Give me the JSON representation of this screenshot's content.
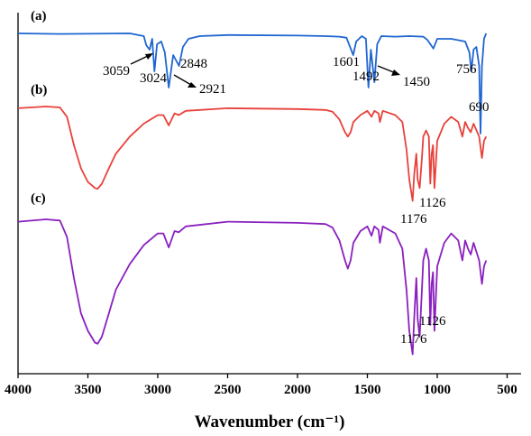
{
  "chart_data": {
    "type": "line",
    "xlabel": "Wavenumber (cm⁻¹)",
    "xlim": [
      4000,
      400
    ],
    "x_reversed": true,
    "x_ticks": [
      4000,
      3500,
      3000,
      2500,
      2000,
      1500,
      1000,
      500
    ],
    "y_axis_visible": false,
    "grid": false,
    "legend": "none",
    "series": [
      {
        "panel": "(a)",
        "color": "#1f66d1",
        "points": [
          [
            4000,
            0.0
          ],
          [
            3700,
            0.01
          ],
          [
            3200,
            0.0
          ],
          [
            3100,
            0.05
          ],
          [
            3082,
            0.22
          ],
          [
            3059,
            0.3
          ],
          [
            3040,
            0.1
          ],
          [
            3024,
            0.7
          ],
          [
            3005,
            0.2
          ],
          [
            2975,
            0.15
          ],
          [
            2950,
            0.35
          ],
          [
            2921,
            1.0
          ],
          [
            2890,
            0.4
          ],
          [
            2848,
            0.6
          ],
          [
            2820,
            0.25
          ],
          [
            2780,
            0.1
          ],
          [
            2700,
            0.05
          ],
          [
            2500,
            0.03
          ],
          [
            2000,
            0.04
          ],
          [
            1800,
            0.05
          ],
          [
            1700,
            0.06
          ],
          [
            1650,
            0.08
          ],
          [
            1601,
            0.4
          ],
          [
            1580,
            0.15
          ],
          [
            1540,
            0.05
          ],
          [
            1510,
            0.1
          ],
          [
            1492,
            1.0
          ],
          [
            1475,
            0.3
          ],
          [
            1450,
            0.9
          ],
          [
            1430,
            0.2
          ],
          [
            1400,
            0.05
          ],
          [
            1300,
            0.06
          ],
          [
            1200,
            0.05
          ],
          [
            1100,
            0.06
          ],
          [
            1070,
            0.12
          ],
          [
            1028,
            0.28
          ],
          [
            1000,
            0.1
          ],
          [
            900,
            0.1
          ],
          [
            800,
            0.15
          ],
          [
            770,
            0.35
          ],
          [
            756,
            0.7
          ],
          [
            740,
            0.3
          ],
          [
            720,
            0.25
          ],
          [
            700,
            0.6
          ],
          [
            690,
            1.85
          ],
          [
            680,
            0.6
          ],
          [
            665,
            0.1
          ],
          [
            650,
            0.0
          ]
        ]
      },
      {
        "panel": "(b)",
        "color": "#e8413b",
        "points": [
          [
            4000,
            0.02
          ],
          [
            3800,
            0.0
          ],
          [
            3700,
            0.01
          ],
          [
            3650,
            0.12
          ],
          [
            3600,
            0.45
          ],
          [
            3550,
            0.72
          ],
          [
            3500,
            0.88
          ],
          [
            3450,
            0.95
          ],
          [
            3430,
            0.96
          ],
          [
            3400,
            0.9
          ],
          [
            3350,
            0.72
          ],
          [
            3300,
            0.55
          ],
          [
            3200,
            0.35
          ],
          [
            3100,
            0.2
          ],
          [
            3000,
            0.1
          ],
          [
            2960,
            0.1
          ],
          [
            2921,
            0.22
          ],
          [
            2880,
            0.08
          ],
          [
            2850,
            0.1
          ],
          [
            2800,
            0.05
          ],
          [
            2500,
            0.02
          ],
          [
            2000,
            0.03
          ],
          [
            1800,
            0.04
          ],
          [
            1750,
            0.06
          ],
          [
            1700,
            0.15
          ],
          [
            1660,
            0.3
          ],
          [
            1640,
            0.35
          ],
          [
            1620,
            0.3
          ],
          [
            1600,
            0.18
          ],
          [
            1550,
            0.1
          ],
          [
            1500,
            0.05
          ],
          [
            1470,
            0.12
          ],
          [
            1450,
            0.05
          ],
          [
            1420,
            0.08
          ],
          [
            1410,
            0.18
          ],
          [
            1390,
            0.05
          ],
          [
            1300,
            0.1
          ],
          [
            1250,
            0.18
          ],
          [
            1220,
            0.5
          ],
          [
            1200,
            0.85
          ],
          [
            1176,
            1.1
          ],
          [
            1165,
            0.8
          ],
          [
            1150,
            0.55
          ],
          [
            1140,
            0.85
          ],
          [
            1126,
            0.95
          ],
          [
            1110,
            0.6
          ],
          [
            1100,
            0.35
          ],
          [
            1080,
            0.28
          ],
          [
            1060,
            0.35
          ],
          [
            1050,
            0.9
          ],
          [
            1040,
            0.55
          ],
          [
            1030,
            0.45
          ],
          [
            1020,
            0.95
          ],
          [
            1000,
            0.4
          ],
          [
            950,
            0.2
          ],
          [
            900,
            0.12
          ],
          [
            850,
            0.18
          ],
          [
            820,
            0.35
          ],
          [
            800,
            0.18
          ],
          [
            780,
            0.25
          ],
          [
            760,
            0.3
          ],
          [
            740,
            0.2
          ],
          [
            700,
            0.35
          ],
          [
            680,
            0.6
          ],
          [
            665,
            0.4
          ],
          [
            650,
            0.35
          ]
        ]
      },
      {
        "panel": "(c)",
        "color": "#8a1fbf",
        "points": [
          [
            4000,
            0.02
          ],
          [
            3800,
            0.0
          ],
          [
            3700,
            0.01
          ],
          [
            3650,
            0.15
          ],
          [
            3600,
            0.5
          ],
          [
            3550,
            0.8
          ],
          [
            3500,
            0.95
          ],
          [
            3450,
            1.05
          ],
          [
            3430,
            1.06
          ],
          [
            3400,
            1.0
          ],
          [
            3350,
            0.8
          ],
          [
            3300,
            0.6
          ],
          [
            3200,
            0.38
          ],
          [
            3100,
            0.22
          ],
          [
            3000,
            0.12
          ],
          [
            2960,
            0.12
          ],
          [
            2921,
            0.24
          ],
          [
            2880,
            0.1
          ],
          [
            2850,
            0.11
          ],
          [
            2800,
            0.06
          ],
          [
            2500,
            0.02
          ],
          [
            2000,
            0.03
          ],
          [
            1800,
            0.04
          ],
          [
            1750,
            0.07
          ],
          [
            1700,
            0.18
          ],
          [
            1660,
            0.35
          ],
          [
            1640,
            0.42
          ],
          [
            1620,
            0.35
          ],
          [
            1600,
            0.2
          ],
          [
            1550,
            0.1
          ],
          [
            1500,
            0.06
          ],
          [
            1470,
            0.14
          ],
          [
            1450,
            0.06
          ],
          [
            1420,
            0.09
          ],
          [
            1410,
            0.2
          ],
          [
            1390,
            0.06
          ],
          [
            1300,
            0.12
          ],
          [
            1250,
            0.25
          ],
          [
            1220,
            0.6
          ],
          [
            1200,
            0.95
          ],
          [
            1176,
            1.15
          ],
          [
            1165,
            0.85
          ],
          [
            1150,
            0.5
          ],
          [
            1140,
            0.85
          ],
          [
            1126,
            1.0
          ],
          [
            1110,
            0.6
          ],
          [
            1100,
            0.35
          ],
          [
            1080,
            0.25
          ],
          [
            1060,
            0.35
          ],
          [
            1050,
            0.9
          ],
          [
            1040,
            0.55
          ],
          [
            1030,
            0.45
          ],
          [
            1020,
            0.95
          ],
          [
            1000,
            0.4
          ],
          [
            950,
            0.2
          ],
          [
            900,
            0.12
          ],
          [
            850,
            0.18
          ],
          [
            820,
            0.35
          ],
          [
            800,
            0.18
          ],
          [
            780,
            0.25
          ],
          [
            760,
            0.3
          ],
          [
            740,
            0.2
          ],
          [
            700,
            0.35
          ],
          [
            680,
            0.55
          ],
          [
            665,
            0.4
          ],
          [
            650,
            0.35
          ]
        ]
      }
    ],
    "panel_labels": [
      "(a)",
      "(b)",
      "(c)"
    ],
    "annotations": [
      {
        "panel": "(a)",
        "text": "3059",
        "arrow": true
      },
      {
        "panel": "(a)",
        "text": "3024",
        "arrow": false
      },
      {
        "panel": "(a)",
        "text": "2848",
        "arrow": false
      },
      {
        "panel": "(a)",
        "text": "2921",
        "arrow": true
      },
      {
        "panel": "(a)",
        "text": "1601",
        "arrow": false
      },
      {
        "panel": "(a)",
        "text": "1492",
        "arrow": false
      },
      {
        "panel": "(a)",
        "text": "1450",
        "arrow": true
      },
      {
        "panel": "(a)",
        "text": "756",
        "arrow": false
      },
      {
        "panel": "(a)",
        "text": "690",
        "arrow": false
      },
      {
        "panel": "(b)",
        "text": "1126",
        "arrow": false
      },
      {
        "panel": "(b)",
        "text": "1176",
        "arrow": false
      },
      {
        "panel": "(c)",
        "text": "1126",
        "arrow": false
      },
      {
        "panel": "(c)",
        "text": "1176",
        "arrow": false
      }
    ]
  }
}
